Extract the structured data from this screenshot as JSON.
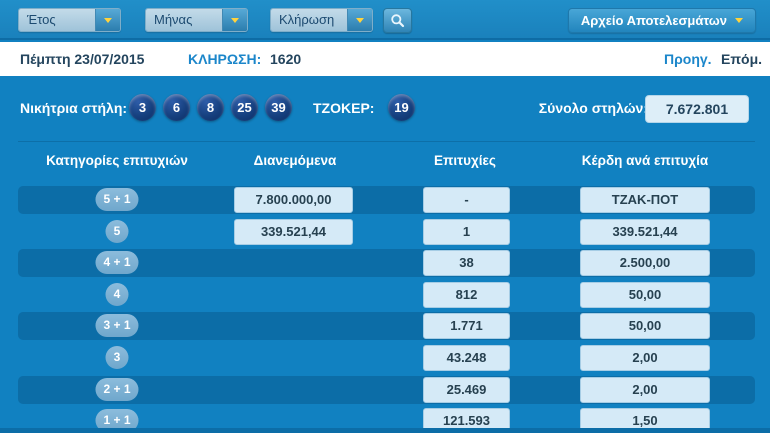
{
  "colors": {
    "panel_blue": "#1181c1",
    "row_highlight": "#0c6da7",
    "box_light_blue": "#d5eaf7",
    "ball_navy": "#16407f",
    "link_blue": "#1b86ca",
    "navy_text": "#24455e",
    "arrow_yellow": "#ffd33d"
  },
  "icons": {
    "search": "magnifier-icon",
    "dropdown": "chevron-down-icon"
  },
  "toolbar": {
    "filters": [
      {
        "label": "Έτος"
      },
      {
        "label": "Μήνας"
      },
      {
        "label": "Κλήρωση"
      }
    ],
    "archive_button": "Αρχείο Αποτελεσμάτων"
  },
  "draw_bar": {
    "date": "Πέμπτη 23/07/2015",
    "draw_label": "ΚΛΗΡΩΣΗ:",
    "draw_number": "1620",
    "prev_label": "Προηγ.",
    "next_label": "Επόμ."
  },
  "results": {
    "winning_label": "Νικήτρια στήλη:",
    "numbers": [
      "3",
      "6",
      "8",
      "25",
      "39"
    ],
    "joker_label": "ΤΖΟΚΕΡ:",
    "joker_number": "19",
    "total_label": "Σύνολο στηλών:",
    "total_value": "7.672.801"
  },
  "table": {
    "headers": [
      "Κατηγορίες επιτυχιών",
      "Διανεμόμενα",
      "Επιτυχίες",
      "Κέρδη ανά επιτυχία"
    ],
    "rows": [
      {
        "category": "5 + 1",
        "distributed": "7.800.000,00",
        "winners": "-",
        "prize": "ΤΖΑΚ-ΠΟΤ",
        "highlight": true
      },
      {
        "category": "5",
        "distributed": "339.521,44",
        "winners": "1",
        "prize": "339.521,44",
        "highlight": false
      },
      {
        "category": "4 + 1",
        "distributed": "",
        "winners": "38",
        "prize": "2.500,00",
        "highlight": true
      },
      {
        "category": "4",
        "distributed": "",
        "winners": "812",
        "prize": "50,00",
        "highlight": false
      },
      {
        "category": "3 + 1",
        "distributed": "",
        "winners": "1.771",
        "prize": "50,00",
        "highlight": true
      },
      {
        "category": "3",
        "distributed": "",
        "winners": "43.248",
        "prize": "2,00",
        "highlight": false
      },
      {
        "category": "2 + 1",
        "distributed": "",
        "winners": "25.469",
        "prize": "2,00",
        "highlight": true
      },
      {
        "category": "1 + 1",
        "distributed": "",
        "winners": "121.593",
        "prize": "1,50",
        "highlight": false
      }
    ]
  }
}
